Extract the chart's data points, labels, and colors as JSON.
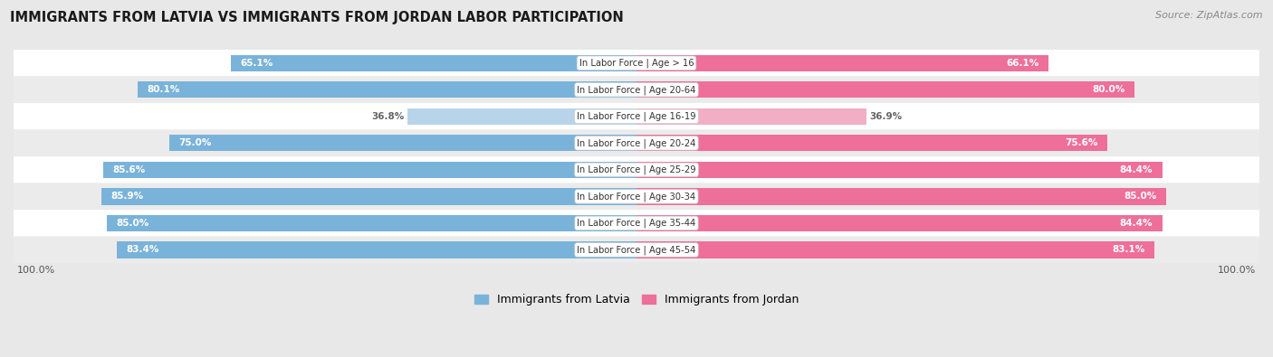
{
  "title": "IMMIGRANTS FROM LATVIA VS IMMIGRANTS FROM JORDAN LABOR PARTICIPATION",
  "source": "Source: ZipAtlas.com",
  "categories": [
    "In Labor Force | Age > 16",
    "In Labor Force | Age 20-64",
    "In Labor Force | Age 16-19",
    "In Labor Force | Age 20-24",
    "In Labor Force | Age 25-29",
    "In Labor Force | Age 30-34",
    "In Labor Force | Age 35-44",
    "In Labor Force | Age 45-54"
  ],
  "latvia_values": [
    65.1,
    80.1,
    36.8,
    75.0,
    85.6,
    85.9,
    85.0,
    83.4
  ],
  "jordan_values": [
    66.1,
    80.0,
    36.9,
    75.6,
    84.4,
    85.0,
    84.4,
    83.1
  ],
  "latvia_color": "#7ab3d9",
  "latvia_color_light": "#b8d4ea",
  "jordan_color": "#ee6f99",
  "jordan_color_light": "#f2aec5",
  "row_colors": [
    "#ffffff",
    "#ebebeb"
  ],
  "max_value": 100.0,
  "legend_latvia": "Immigrants from Latvia",
  "legend_jordan": "Immigrants from Jordan"
}
